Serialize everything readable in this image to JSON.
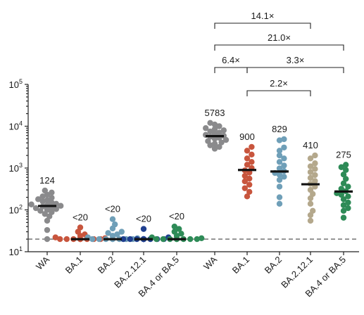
{
  "chart_data": {
    "type": "scatter",
    "title": "",
    "xlabel": "",
    "ylabel": "",
    "yscale": "log",
    "ylim": [
      10,
      100000
    ],
    "y_ticks": [
      {
        "base": "10",
        "exp": "1",
        "value": 10
      },
      {
        "base": "10",
        "exp": "2",
        "value": 100
      },
      {
        "base": "10",
        "exp": "3",
        "value": 1000
      },
      {
        "base": "10",
        "exp": "4",
        "value": 10000
      },
      {
        "base": "10",
        "exp": "5",
        "value": 100000
      }
    ],
    "threshold": 20,
    "colors": {
      "WA": "#8a8a8c",
      "BA.1": "#c8553d",
      "BA.2": "#6f9fb8",
      "BA.2.12.1": "#1f3f8f",
      "BA.4 or BA.5": "#2e8b57",
      "BA.2.12.1-post": "#b4a88c"
    },
    "groups": [
      {
        "category": "WA",
        "color_key": "WA",
        "median": 124,
        "label": "124",
        "values": [
          290,
          260,
          230,
          210,
          195,
          180,
          170,
          160,
          150,
          140,
          135,
          130,
          125,
          120,
          115,
          110,
          105,
          100,
          95,
          88,
          80,
          70,
          55,
          33,
          20
        ]
      },
      {
        "category": "BA.1",
        "color_key": "BA.1",
        "median": 20,
        "label": "<20",
        "values": [
          38,
          30,
          26,
          24,
          22,
          21,
          20,
          20,
          20,
          20,
          20,
          20,
          20,
          20,
          20
        ]
      },
      {
        "category": "BA.2",
        "color_key": "BA.2",
        "median": 20,
        "label": "<20",
        "values": [
          60,
          45,
          36,
          30,
          28,
          26,
          24,
          22,
          21,
          20,
          20,
          20,
          20,
          20,
          20,
          20,
          20
        ]
      },
      {
        "category": "BA.2.12.1",
        "color_key": "BA.2.12.1",
        "median": 20,
        "label": "<20",
        "values": [
          35,
          22,
          20,
          20,
          20,
          20,
          20,
          20,
          20,
          20,
          20,
          20,
          20,
          20,
          20
        ]
      },
      {
        "category": "BA.4 or BA.5",
        "color_key": "BA.4 or BA.5",
        "median": 20,
        "label": "<20",
        "values": [
          40,
          35,
          30,
          27,
          24,
          22,
          21,
          20,
          20,
          20,
          20,
          20,
          20,
          20,
          20
        ]
      },
      {
        "category": "WA",
        "color_key": "WA",
        "median": 5783,
        "label": "5783",
        "values": [
          12000,
          11000,
          10000,
          9000,
          8500,
          8000,
          7500,
          7000,
          6600,
          6200,
          5900,
          5600,
          5300,
          5000,
          4700,
          4400,
          4100,
          3800,
          3500,
          3200,
          2900
        ]
      },
      {
        "category": "BA.1",
        "color_key": "BA.1",
        "median": 900,
        "label": "900",
        "values": [
          3200,
          2600,
          2100,
          1700,
          1400,
          1200,
          1000,
          880,
          780,
          650,
          560,
          480,
          400,
          330,
          270,
          210
        ]
      },
      {
        "category": "BA.2",
        "color_key": "BA.2",
        "median": 829,
        "label": "829",
        "values": [
          4900,
          4600,
          3100,
          2600,
          2000,
          1700,
          1400,
          1150,
          980,
          850,
          760,
          690,
          620,
          520,
          360,
          200,
          140
        ]
      },
      {
        "category": "BA.2.12.1",
        "color_key": "BA.2.12.1-post",
        "median": 410,
        "label": "410",
        "values": [
          2000,
          1700,
          1300,
          1100,
          950,
          800,
          680,
          580,
          490,
          420,
          360,
          300,
          240,
          190,
          140,
          95,
          75,
          55
        ]
      },
      {
        "category": "BA.4 or BA.5",
        "color_key": "BA.4 or BA.5",
        "median": 275,
        "label": "275",
        "values": [
          1200,
          1050,
          900,
          700,
          550,
          430,
          360,
          320,
          280,
          250,
          230,
          210,
          180,
          150,
          130,
          110,
          95,
          65
        ]
      }
    ],
    "brackets": [
      {
        "from": 5,
        "to": 8,
        "label": "14.1×",
        "level": 1
      },
      {
        "from": 5,
        "to": 9,
        "label": "21.0×",
        "level": 2
      },
      {
        "from": 5,
        "to": 6,
        "label": "6.4×",
        "level": 3
      },
      {
        "from": 6,
        "to": 9,
        "label": "3.3×",
        "level": 3
      },
      {
        "from": 6,
        "to": 8,
        "label": "2.2×",
        "level": 4
      }
    ]
  }
}
